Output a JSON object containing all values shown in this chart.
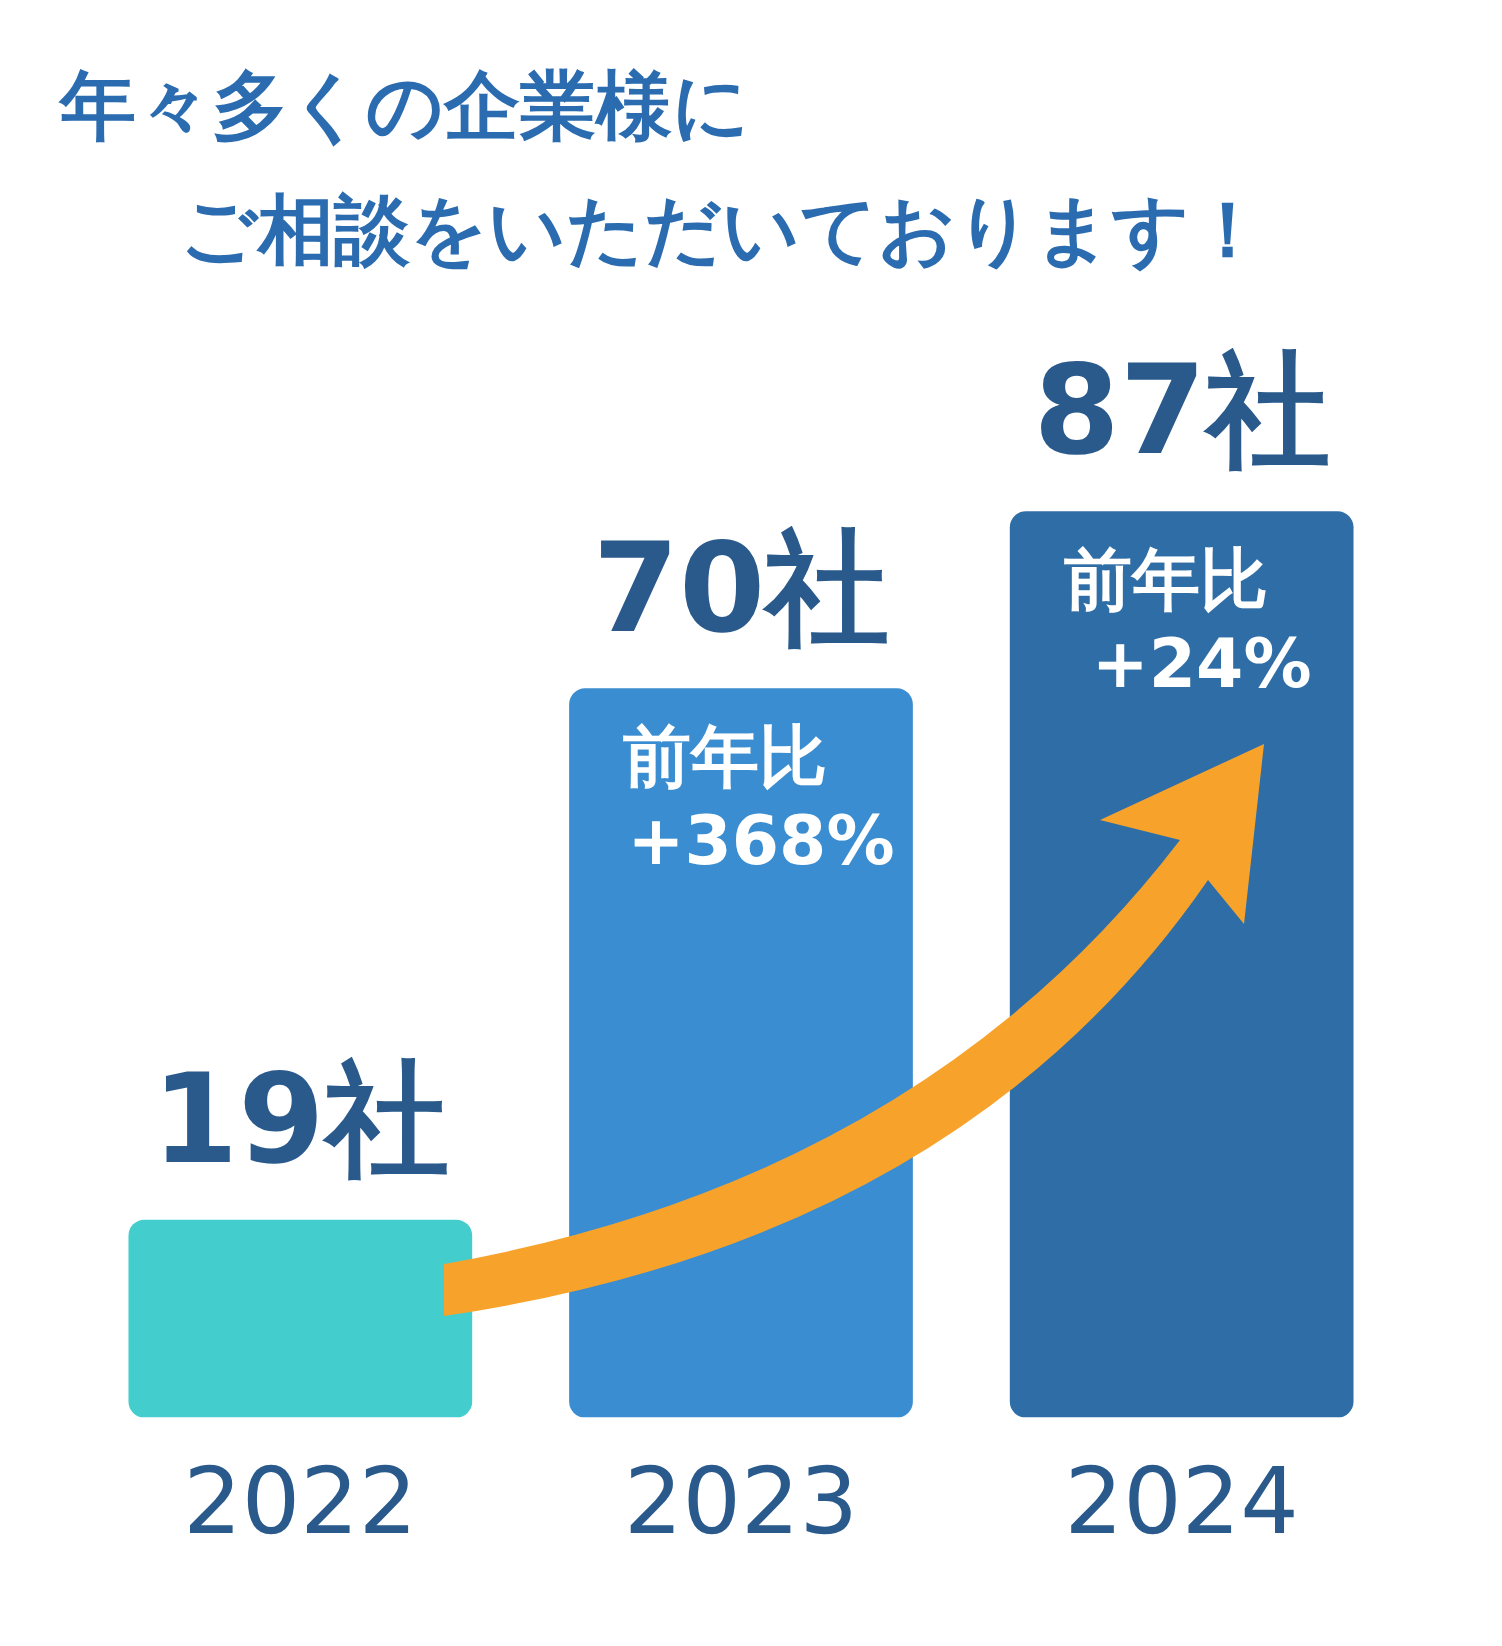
{
  "chart_data": {
    "type": "bar",
    "title": "年々多くの企業様に",
    "subtitle": "ご相談をいただいております！",
    "categories": [
      "2022",
      "2023",
      "2024"
    ],
    "values": [
      19,
      70,
      87
    ],
    "value_labels": [
      "19社",
      "70社",
      "87社"
    ],
    "colors": [
      "#43cdcd",
      "#3a8dd0",
      "#2f6da6"
    ],
    "annotations": [
      {
        "text": "前年比\n+368%",
        "x": "2023",
        "y": 70
      },
      {
        "text": "前年比\n+24%",
        "x": "2024",
        "y": 87
      }
    ],
    "grid": false,
    "legend": false
  }
}
